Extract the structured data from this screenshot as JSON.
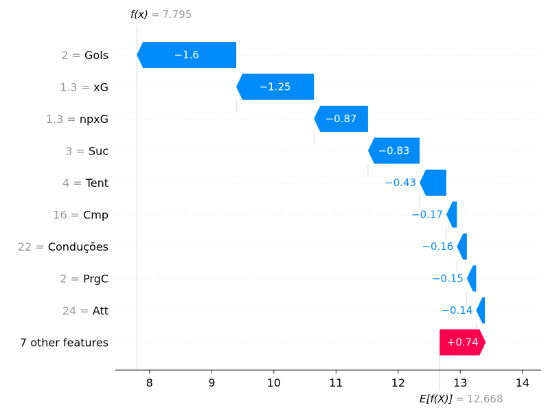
{
  "chart_data": {
    "type": "waterfall",
    "fx_label": "f(x)",
    "fx_value": "7.795",
    "fx_equals": "=",
    "ex_label": "E[f(X)]",
    "ex_value": "12.668",
    "ex_equals": "=",
    "base_value": 12.668,
    "final_value": 7.795,
    "xlim": [
      7.45,
      14.3
    ],
    "x_ticks": [
      "8",
      "9",
      "10",
      "11",
      "12",
      "13",
      "14"
    ],
    "x_tick_values": [
      8,
      9,
      10,
      11,
      12,
      13,
      14
    ],
    "colors": {
      "negative": "#008bfb",
      "positive": "#ff0051"
    },
    "features": [
      {
        "value": "2",
        "name": "Gols",
        "contribution": -1.6,
        "label": "−1.6",
        "start": 9.395,
        "end": 7.795
      },
      {
        "value": "1.3",
        "name": "xG",
        "contribution": -1.25,
        "label": "−1.25",
        "start": 10.645,
        "end": 9.395
      },
      {
        "value": "1.3",
        "name": "npxG",
        "contribution": -0.87,
        "label": "−0.87",
        "start": 11.515,
        "end": 10.645
      },
      {
        "value": "3",
        "name": "Suc",
        "contribution": -0.83,
        "label": "−0.83",
        "start": 12.345,
        "end": 11.515
      },
      {
        "value": "4",
        "name": "Tent",
        "contribution": -0.43,
        "label": "−0.43",
        "start": 12.775,
        "end": 12.345
      },
      {
        "value": "16",
        "name": "Cmp",
        "contribution": -0.17,
        "label": "−0.17",
        "start": 12.945,
        "end": 12.775
      },
      {
        "value": "22",
        "name": "Conduções",
        "contribution": -0.16,
        "label": "−0.16",
        "start": 13.105,
        "end": 12.945
      },
      {
        "value": "2",
        "name": "PrgC",
        "contribution": -0.15,
        "label": "−0.15",
        "start": 13.255,
        "end": 13.105
      },
      {
        "value": "24",
        "name": "Att",
        "contribution": -0.14,
        "label": "−0.14",
        "start": 13.395,
        "end": 13.255
      },
      {
        "value": "",
        "name": "7 other features",
        "contribution": 0.74,
        "label": "+0.74",
        "start": 12.668,
        "end": 13.408
      }
    ]
  }
}
